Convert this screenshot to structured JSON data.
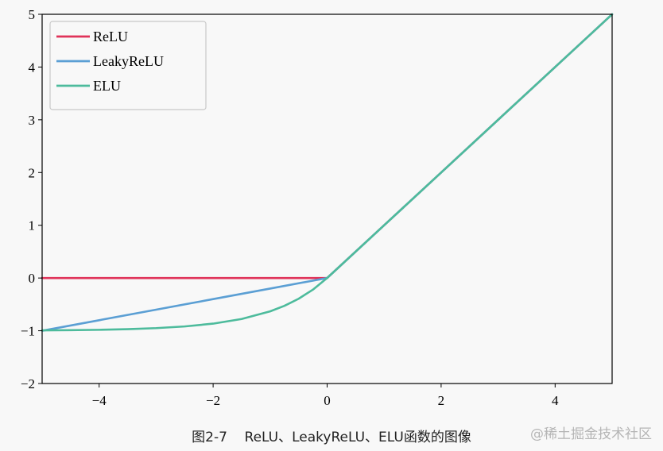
{
  "caption": "图2-7    ReLU、LeakyReLU、ELU函数的图像",
  "watermark": "@稀土掘金技术社区",
  "chart_data": {
    "type": "line",
    "title": "",
    "xlabel": "",
    "ylabel": "",
    "xlim": [
      -5,
      5
    ],
    "ylim": [
      -2,
      5
    ],
    "xticks": [
      -4,
      -2,
      0,
      2,
      4
    ],
    "yticks": [
      -2,
      -1,
      0,
      1,
      2,
      3,
      4,
      5
    ],
    "xtick_labels": [
      "−4",
      "−2",
      "0",
      "2",
      "4"
    ],
    "ytick_labels": [
      "−2",
      "−1",
      "0",
      "1",
      "2",
      "3",
      "4",
      "5"
    ],
    "grid": false,
    "legend_position": "top-left",
    "series": [
      {
        "name": "ReLU",
        "color": "#e0335a",
        "x": [
          -5,
          -4,
          -3,
          -2,
          -1,
          0,
          1,
          2,
          3,
          4,
          5
        ],
        "y": [
          0,
          0,
          0,
          0,
          0,
          0,
          1,
          2,
          3,
          4,
          5
        ]
      },
      {
        "name": "LeakyReLU",
        "color": "#5b9fd4",
        "x": [
          -5,
          -4,
          -3,
          -2,
          -1,
          0,
          1,
          2,
          3,
          4,
          5
        ],
        "y": [
          -1,
          -0.8,
          -0.6,
          -0.4,
          -0.2,
          0,
          1,
          2,
          3,
          4,
          5
        ]
      },
      {
        "name": "ELU",
        "color": "#4dbb9c",
        "x": [
          -5,
          -4.5,
          -4,
          -3.5,
          -3,
          -2.5,
          -2,
          -1.5,
          -1,
          -0.75,
          -0.5,
          -0.25,
          0,
          1,
          2,
          3,
          4,
          5
        ],
        "y": [
          -0.993,
          -0.989,
          -0.982,
          -0.97,
          -0.95,
          -0.918,
          -0.865,
          -0.777,
          -0.632,
          -0.528,
          -0.393,
          -0.221,
          0,
          1,
          2,
          3,
          4,
          5
        ]
      }
    ]
  }
}
